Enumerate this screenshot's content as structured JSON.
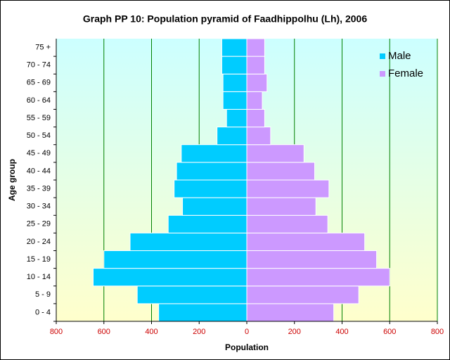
{
  "chart_data": {
    "type": "pyramid",
    "title": "Graph PP 10: Population pyramid of Faadhippolhu (Lh), 2006",
    "x_label": "Population",
    "y_label": "Age group",
    "categories": [
      "0 - 4",
      "5 - 9",
      "10 - 14",
      "15 - 19",
      "20 - 24",
      "25 - 29",
      "30 - 34",
      "35 - 39",
      "40 - 44",
      "45 - 49",
      "50 - 54",
      "55 - 59",
      "60 - 64",
      "65 - 69",
      "70 - 74",
      "75 +"
    ],
    "series": [
      {
        "name": "Male",
        "color": "#00ccff",
        "values": [
          -370,
          -460,
          -645,
          -600,
          -490,
          -330,
          -270,
          -305,
          -295,
          -275,
          -125,
          -85,
          -100,
          -100,
          -105,
          -105
        ]
      },
      {
        "name": "Female",
        "color": "#cc99ff",
        "values": [
          365,
          470,
          600,
          545,
          495,
          340,
          290,
          345,
          285,
          240,
          100,
          75,
          65,
          85,
          75,
          75
        ]
      }
    ],
    "xlim": [
      -800,
      800
    ],
    "xticks": [
      {
        "value": -800,
        "label": "800"
      },
      {
        "value": -600,
        "label": "600"
      },
      {
        "value": -400,
        "label": "400"
      },
      {
        "value": -200,
        "label": "200"
      },
      0,
      200,
      400,
      600,
      800
    ],
    "grid": true,
    "legend": "top-right"
  }
}
